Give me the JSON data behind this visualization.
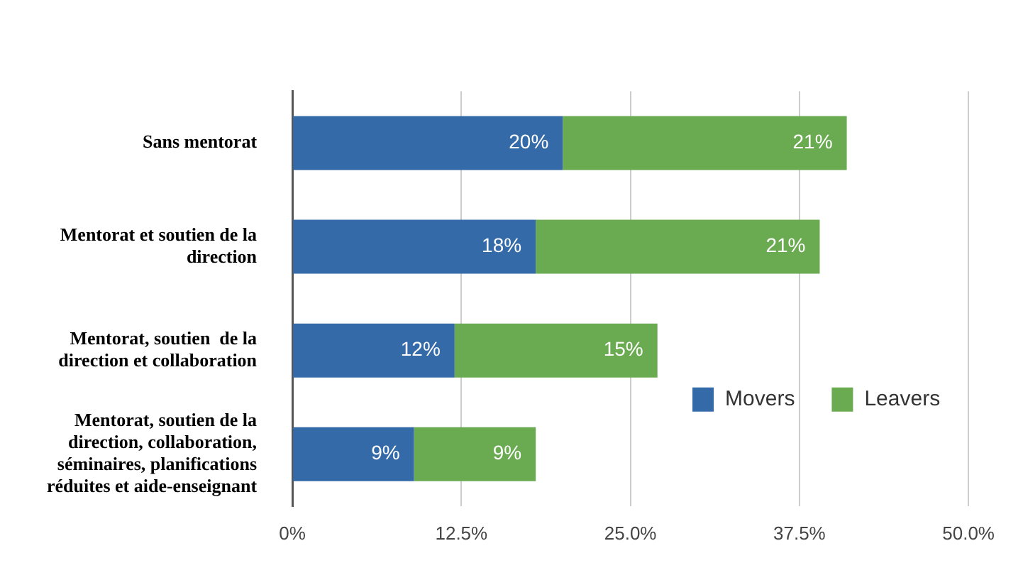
{
  "chart_data": {
    "type": "bar",
    "orientation": "horizontal",
    "stacked": true,
    "categories": [
      "Sans mentorat",
      "Mentorat et soutien de la direction",
      "Mentorat, soutien  de la direction et collaboration",
      "Mentorat, soutien de la direction, collaboration, séminaires, planifications réduites et aide-enseignant"
    ],
    "series": [
      {
        "name": "Movers",
        "color": "#356aa8",
        "values": [
          20,
          18,
          12,
          9
        ],
        "value_labels": [
          "20%",
          "18%",
          "12%",
          "9%"
        ]
      },
      {
        "name": "Leavers",
        "color": "#6aab51",
        "values": [
          21,
          21,
          15,
          9
        ],
        "value_labels": [
          "21%",
          "21%",
          "15%",
          "9%"
        ]
      }
    ],
    "xlim": [
      0,
      50
    ],
    "xticks": [
      {
        "value": 0,
        "label": "0%"
      },
      {
        "value": 12.5,
        "label": "12.5%"
      },
      {
        "value": 25,
        "label": "25.0%"
      },
      {
        "value": 37.5,
        "label": "37.5%"
      },
      {
        "value": 50,
        "label": "50.0%"
      }
    ],
    "grid": "x",
    "legend": "bottom right"
  }
}
